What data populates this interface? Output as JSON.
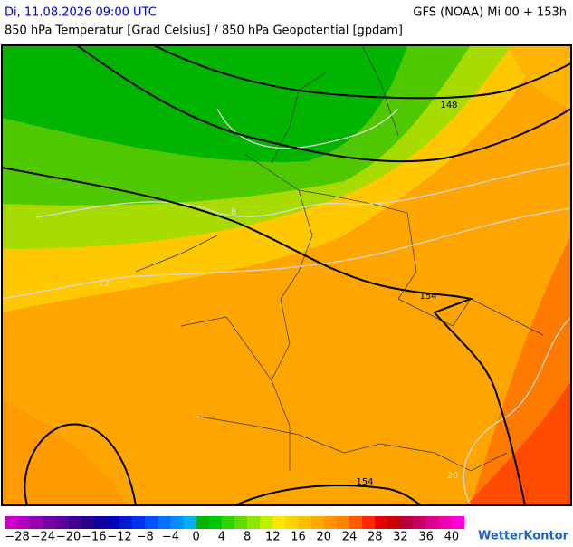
{
  "header": {
    "datetime": "Di, 11.08.2026 09:00 UTC",
    "model": "GFS (NOAA) Mi 00 + 153h",
    "subtitle": "850 hPa Temperatur [Grad Celsius] / 850 hPa Geopotential [gpdam]"
  },
  "map": {
    "isohypse_labels": [
      "148",
      "154",
      "154"
    ],
    "isotherm_labels": [
      "8",
      "12",
      "20"
    ]
  },
  "colorbar": {
    "labels": [
      "−28",
      "−24",
      "−20",
      "−16",
      "−12",
      "−8",
      "−4",
      "0",
      "4",
      "8",
      "12",
      "16",
      "20",
      "24",
      "28",
      "32",
      "36",
      "40"
    ],
    "colors": [
      "#cc00cc",
      "#b000c0",
      "#9400b4",
      "#7800aa",
      "#5c00a0",
      "#400096",
      "#28008c",
      "#10009c",
      "#0000b4",
      "#0018d2",
      "#0030f0",
      "#0050ff",
      "#0070ff",
      "#0090ff",
      "#00b0f0",
      "#00b400",
      "#00c800",
      "#30d200",
      "#60dc00",
      "#90e600",
      "#c0f000",
      "#ffe600",
      "#ffd200",
      "#ffbe00",
      "#ffaa00",
      "#ff9600",
      "#ff8200",
      "#ff5a00",
      "#ff2800",
      "#e60000",
      "#c80000",
      "#b4003c",
      "#c80064",
      "#dc008c",
      "#f000b4",
      "#ff00dc"
    ]
  },
  "logo": "WetterKontor"
}
